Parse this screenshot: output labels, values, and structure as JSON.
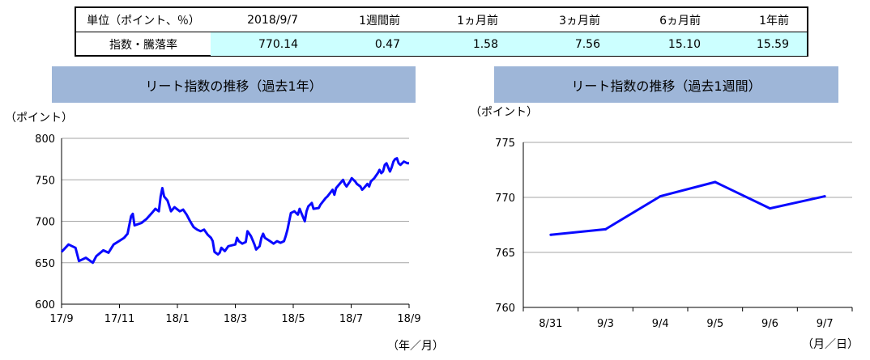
{
  "summary_table": {
    "headers": [
      "単位（ポイント、％）",
      "2018/9/7",
      "1週間前",
      "1ヵ月前",
      "3ヵ月前",
      "6ヵ月前",
      "1年前"
    ],
    "row_label": "指数・騰落率",
    "values": [
      "770.14",
      "0.47",
      "1.58",
      "7.56",
      "15.10",
      "15.59"
    ]
  },
  "colors": {
    "line": "#0a0aff",
    "title_band": "#9eb6d8",
    "highlight": "#ccffff",
    "grid": "#a6a6a6"
  },
  "chart_data": [
    {
      "type": "line",
      "title": "リート指数の推移（過去1年）",
      "ylabel": "（ポイント）",
      "xlabel": "（年／月）",
      "ylim": [
        600,
        800
      ],
      "yticks": [
        600,
        650,
        700,
        750,
        800
      ],
      "xticks": [
        "17/9",
        "17/11",
        "18/1",
        "18/3",
        "18/5",
        "18/7",
        "18/9"
      ],
      "grid": true,
      "series": [
        {
          "values": [
            [
              0.0,
              663
            ],
            [
              0.02,
              672
            ],
            [
              0.04,
              668
            ],
            [
              0.05,
              652
            ],
            [
              0.07,
              656
            ],
            [
              0.09,
              650
            ],
            [
              0.1,
              658
            ],
            [
              0.12,
              665
            ],
            [
              0.135,
              662
            ],
            [
              0.15,
              672
            ],
            [
              0.165,
              676
            ],
            [
              0.18,
              680
            ],
            [
              0.19,
              685
            ],
            [
              0.2,
              706
            ],
            [
              0.205,
              709
            ],
            [
              0.21,
              695
            ],
            [
              0.23,
              698
            ],
            [
              0.245,
              703
            ],
            [
              0.26,
              710
            ],
            [
              0.27,
              715
            ],
            [
              0.28,
              712
            ],
            [
              0.285,
              730
            ],
            [
              0.29,
              740
            ],
            [
              0.295,
              730
            ],
            [
              0.305,
              725
            ],
            [
              0.315,
              712
            ],
            [
              0.325,
              717
            ],
            [
              0.34,
              712
            ],
            [
              0.35,
              714
            ],
            [
              0.36,
              708
            ],
            [
              0.37,
              700
            ],
            [
              0.38,
              693
            ],
            [
              0.39,
              690
            ],
            [
              0.4,
              688
            ],
            [
              0.41,
              690
            ],
            [
              0.42,
              684
            ],
            [
              0.43,
              680
            ],
            [
              0.435,
              676
            ],
            [
              0.44,
              663
            ],
            [
              0.45,
              660
            ],
            [
              0.455,
              662
            ],
            [
              0.46,
              668
            ],
            [
              0.47,
              664
            ],
            [
              0.48,
              670
            ],
            [
              0.5,
              672
            ],
            [
              0.505,
              680
            ],
            [
              0.51,
              676
            ],
            [
              0.52,
              673
            ],
            [
              0.53,
              675
            ],
            [
              0.535,
              688
            ],
            [
              0.545,
              682
            ],
            [
              0.55,
              677
            ],
            [
              0.555,
              672
            ],
            [
              0.56,
              666
            ],
            [
              0.57,
              670
            ],
            [
              0.575,
              680
            ],
            [
              0.58,
              685
            ],
            [
              0.585,
              680
            ],
            [
              0.6,
              676
            ],
            [
              0.61,
              673
            ],
            [
              0.62,
              676
            ],
            [
              0.63,
              674
            ],
            [
              0.64,
              676
            ],
            [
              0.645,
              682
            ],
            [
              0.65,
              690
            ],
            [
              0.655,
              700
            ],
            [
              0.66,
              710
            ],
            [
              0.67,
              712
            ],
            [
              0.68,
              708
            ],
            [
              0.685,
              715
            ],
            [
              0.69,
              710
            ],
            [
              0.7,
              700
            ],
            [
              0.705,
              712
            ],
            [
              0.71,
              718
            ],
            [
              0.72,
              722
            ],
            [
              0.725,
              715
            ],
            [
              0.74,
              716
            ],
            [
              0.745,
              720
            ],
            [
              0.76,
              728
            ],
            [
              0.765,
              730
            ],
            [
              0.78,
              738
            ],
            [
              0.785,
              732
            ],
            [
              0.79,
              740
            ],
            [
              0.8,
              745
            ],
            [
              0.81,
              750
            ],
            [
              0.815,
              745
            ],
            [
              0.82,
              742
            ],
            [
              0.83,
              748
            ],
            [
              0.835,
              752
            ],
            [
              0.845,
              748
            ],
            [
              0.85,
              745
            ],
            [
              0.86,
              742
            ],
            [
              0.865,
              738
            ],
            [
              0.87,
              740
            ],
            [
              0.88,
              745
            ],
            [
              0.885,
              742
            ],
            [
              0.89,
              748
            ],
            [
              0.9,
              752
            ],
            [
              0.905,
              755
            ],
            [
              0.91,
              758
            ],
            [
              0.915,
              762
            ],
            [
              0.92,
              758
            ],
            [
              0.925,
              760
            ],
            [
              0.93,
              768
            ],
            [
              0.935,
              770
            ],
            [
              0.945,
              760
            ],
            [
              0.95,
              765
            ],
            [
              0.955,
              772
            ],
            [
              0.96,
              775
            ],
            [
              0.965,
              776
            ],
            [
              0.97,
              770
            ],
            [
              0.975,
              768
            ],
            [
              0.98,
              770
            ],
            [
              0.985,
              772
            ],
            [
              0.99,
              771
            ],
            [
              0.995,
              770
            ],
            [
              1.0,
              770
            ]
          ]
        }
      ]
    },
    {
      "type": "line",
      "title": "リート指数の推移（過去1週間）",
      "ylabel": "（ポイント）",
      "xlabel": "（月／日）",
      "ylim": [
        760,
        775
      ],
      "yticks": [
        760,
        765,
        770,
        775
      ],
      "categories": [
        "8/31",
        "9/3",
        "9/4",
        "9/5",
        "9/6",
        "9/7"
      ],
      "grid": true,
      "series": [
        {
          "values": [
            766.6,
            767.1,
            770.1,
            771.4,
            769.0,
            770.1
          ]
        }
      ]
    }
  ]
}
